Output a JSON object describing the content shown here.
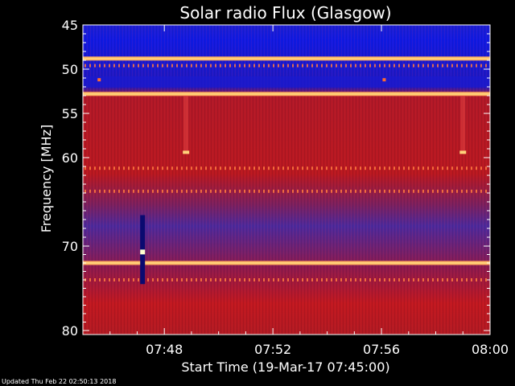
{
  "chart_data": {
    "type": "heatmap",
    "title": "Solar radio Flux (Glasgow)",
    "xlabel": "Start Time (19-Mar-17 07:45:00)",
    "ylabel": "Frequency [MHz]",
    "x_ticks": [
      "07:48",
      "07:52",
      "07:56",
      "08:00"
    ],
    "x_tick_minutes": [
      3,
      7,
      11,
      15
    ],
    "xlim_minutes": [
      0,
      15
    ],
    "y_ticks": [
      45,
      50,
      55,
      60,
      70,
      80
    ],
    "ylim": [
      45,
      80
    ],
    "colors": {
      "low": "#0a1ad8",
      "mid_low": "#5a2aa8",
      "mid": "#9a1a4a",
      "high": "#c41818",
      "peak": "#ffd27a",
      "background": "#000000",
      "axis": "#ffffff"
    },
    "bright_bands_mhz": [
      48.8,
      52.8,
      72.0
    ],
    "striped_bands_mhz": [
      49.6,
      74.0,
      63.8,
      61.2
    ]
  },
  "footer": {
    "updated": "Updated Thu Feb 22 02:50:13 2018"
  }
}
